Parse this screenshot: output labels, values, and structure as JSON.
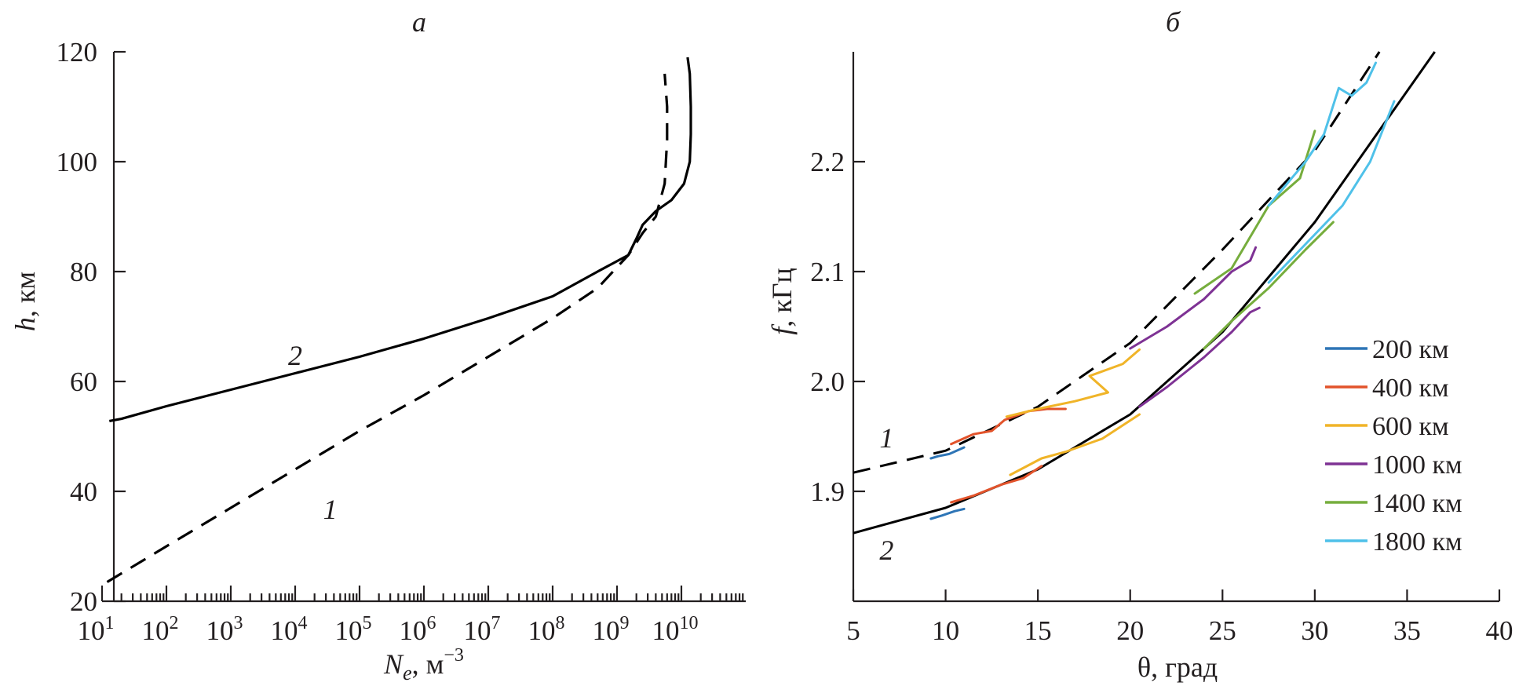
{
  "chart_data": [
    {
      "type": "line",
      "panel_label": "а",
      "xlabel_main": "N",
      "xlabel_sub": "e",
      "xlabel_unit": ", м",
      "xlabel_unit_exp": "−3",
      "ylabel_main": "h",
      "ylabel_unit": ", км",
      "x_scale": "log",
      "xlim": [
        10,
        100000000000.0
      ],
      "ylim": [
        20,
        120
      ],
      "x_tick_exponents": [
        "1",
        "2",
        "3",
        "4",
        "5",
        "6",
        "7",
        "8",
        "9",
        "10"
      ],
      "x_tick_base": "10",
      "y_ticks": [
        "20",
        "40",
        "60",
        "80",
        "100",
        "120"
      ],
      "series": [
        {
          "name": "1",
          "style": "dashed",
          "points": [
            [
              12,
              23.5
            ],
            [
              100,
              30
            ],
            [
              1000,
              37
            ],
            [
              10000,
              44
            ],
            [
              100000,
              51
            ],
            [
              1000000,
              57.5
            ],
            [
              10000000,
              64.5
            ],
            [
              100000000,
              71.5
            ],
            [
              500000000,
              77
            ],
            [
              1500000000,
              83
            ],
            [
              2500000000,
              87
            ],
            [
              4000000000,
              90
            ],
            [
              5500000000,
              96
            ],
            [
              6000000000,
              104
            ],
            [
              6000000000,
              110
            ],
            [
              5500000000,
              116
            ]
          ]
        },
        {
          "name": "2",
          "style": "solid",
          "points": [
            [
              13,
              52.8
            ],
            [
              20,
              53.2
            ],
            [
              100,
              55.5
            ],
            [
              1000,
              58.5
            ],
            [
              10000,
              61.5
            ],
            [
              100000,
              64.5
            ],
            [
              1000000,
              67.8
            ],
            [
              10000000,
              71.5
            ],
            [
              100000000,
              75.5
            ],
            [
              500000000,
              80
            ],
            [
              1500000000,
              83
            ],
            [
              2000000000,
              86
            ],
            [
              2500000000,
              88.5
            ],
            [
              4000000000,
              91
            ],
            [
              7000000000,
              93
            ],
            [
              11000000000,
              96
            ],
            [
              13500000000,
              100
            ],
            [
              14000000000,
              105
            ],
            [
              14000000000,
              110
            ],
            [
              13500000000,
              116
            ],
            [
              12500000000,
              119
            ]
          ]
        }
      ],
      "curve_labels": [
        {
          "text": "2",
          "x": 10000,
          "y": 63
        },
        {
          "text": "1",
          "x": 35000,
          "y": 35
        }
      ]
    },
    {
      "type": "line",
      "panel_label": "б",
      "xlabel": "θ, град",
      "ylabel_main": "f",
      "ylabel_unit": ", кГц",
      "xlim": [
        5,
        40
      ],
      "ylim": [
        1.8,
        2.3
      ],
      "x_ticks": [
        "5",
        "10",
        "15",
        "20",
        "25",
        "30",
        "35",
        "40"
      ],
      "y_ticks": [
        "1.9",
        "2.0",
        "2.1",
        "2.2"
      ],
      "legend_position": "right",
      "legend": [
        {
          "label": "200 км",
          "color": "#2e75b6"
        },
        {
          "label": "400 км",
          "color": "#e2532b"
        },
        {
          "label": "600 км",
          "color": "#f0b428"
        },
        {
          "label": "1000 км",
          "color": "#7e3294"
        },
        {
          "label": "1400 км",
          "color": "#76ad3d"
        },
        {
          "label": "1800 км",
          "color": "#4fc1e9"
        }
      ],
      "reference_curves": [
        {
          "name": "1",
          "style": "dashed",
          "color": "#000000",
          "points": [
            [
              5,
              1.917
            ],
            [
              10,
              1.937
            ],
            [
              15,
              1.977
            ],
            [
              20,
              2.035
            ],
            [
              25,
              2.12
            ],
            [
              30,
              2.21
            ],
            [
              33.5,
              2.3
            ]
          ]
        },
        {
          "name": "2",
          "style": "solid",
          "color": "#000000",
          "points": [
            [
              5,
              1.862
            ],
            [
              10,
              1.885
            ],
            [
              15,
              1.92
            ],
            [
              20,
              1.97
            ],
            [
              25,
              2.045
            ],
            [
              30,
              2.145
            ],
            [
              36.5,
              2.3
            ]
          ]
        }
      ],
      "series": [
        {
          "group": "200 км",
          "color": "#2e75b6",
          "points": [
            [
              9.2,
              1.93
            ],
            [
              9.6,
              1.932
            ],
            [
              10.2,
              1.934
            ],
            [
              11,
              1.94
            ]
          ]
        },
        {
          "group": "200 км",
          "color": "#2e75b6",
          "points": [
            [
              9.2,
              1.875
            ],
            [
              9.8,
              1.878
            ],
            [
              10.5,
              1.882
            ],
            [
              11,
              1.884
            ]
          ]
        },
        {
          "group": "400 км",
          "color": "#e2532b",
          "points": [
            [
              10.3,
              1.943
            ],
            [
              11.5,
              1.952
            ],
            [
              12.5,
              1.955
            ],
            [
              13.2,
              1.965
            ],
            [
              14.5,
              1.973
            ],
            [
              15.5,
              1.975
            ],
            [
              16.5,
              1.975
            ]
          ]
        },
        {
          "group": "400 км",
          "color": "#e2532b",
          "points": [
            [
              10.3,
              1.89
            ],
            [
              11.5,
              1.896
            ],
            [
              13,
              1.906
            ],
            [
              14.2,
              1.912
            ],
            [
              15.2,
              1.923
            ]
          ]
        },
        {
          "group": "600 км",
          "color": "#f0b428",
          "points": [
            [
              13.3,
              1.968
            ],
            [
              15,
              1.975
            ],
            [
              17,
              1.982
            ],
            [
              18.8,
              1.99
            ],
            [
              17.8,
              2.005
            ],
            [
              19.6,
              2.016
            ],
            [
              20.5,
              2.029
            ]
          ]
        },
        {
          "group": "600 км",
          "color": "#f0b428",
          "points": [
            [
              13.5,
              1.915
            ],
            [
              15.2,
              1.93
            ],
            [
              16.5,
              1.936
            ],
            [
              18.5,
              1.948
            ],
            [
              20.5,
              1.97
            ]
          ]
        },
        {
          "group": "1000 км",
          "color": "#7e3294",
          "points": [
            [
              20,
              2.03
            ],
            [
              22,
              2.05
            ],
            [
              24,
              2.075
            ],
            [
              25.5,
              2.1
            ],
            [
              26.5,
              2.11
            ],
            [
              26.8,
              2.122
            ]
          ]
        },
        {
          "group": "1000 км",
          "color": "#7e3294",
          "points": [
            [
              20.5,
              1.977
            ],
            [
              22,
              1.995
            ],
            [
              24,
              2.022
            ],
            [
              25.5,
              2.045
            ],
            [
              26.5,
              2.063
            ],
            [
              27,
              2.067
            ]
          ]
        },
        {
          "group": "1400 км",
          "color": "#76ad3d",
          "points": [
            [
              23.5,
              2.08
            ],
            [
              25.5,
              2.103
            ],
            [
              27.5,
              2.16
            ],
            [
              29.2,
              2.185
            ],
            [
              30,
              2.228
            ]
          ]
        },
        {
          "group": "1400 км",
          "color": "#76ad3d",
          "points": [
            [
              24,
              2.03
            ],
            [
              25.5,
              2.055
            ],
            [
              27.5,
              2.085
            ],
            [
              29.5,
              2.12
            ],
            [
              31,
              2.145
            ]
          ]
        },
        {
          "group": "1800 км",
          "color": "#4fc1e9",
          "points": [
            [
              27.5,
              2.16
            ],
            [
              29.5,
              2.2
            ],
            [
              30.5,
              2.225
            ],
            [
              31.3,
              2.267
            ],
            [
              32,
              2.26
            ],
            [
              32.8,
              2.272
            ],
            [
              33.3,
              2.29
            ]
          ]
        },
        {
          "group": "1800 км",
          "color": "#4fc1e9",
          "points": [
            [
              27.5,
              2.09
            ],
            [
              29.5,
              2.125
            ],
            [
              31.5,
              2.16
            ],
            [
              33,
              2.2
            ],
            [
              34.3,
              2.255
            ]
          ]
        }
      ],
      "curve_labels": [
        {
          "text": "1",
          "x": 6.8,
          "y": 1.94
        },
        {
          "text": "2",
          "x": 6.8,
          "y": 1.838
        }
      ]
    }
  ]
}
